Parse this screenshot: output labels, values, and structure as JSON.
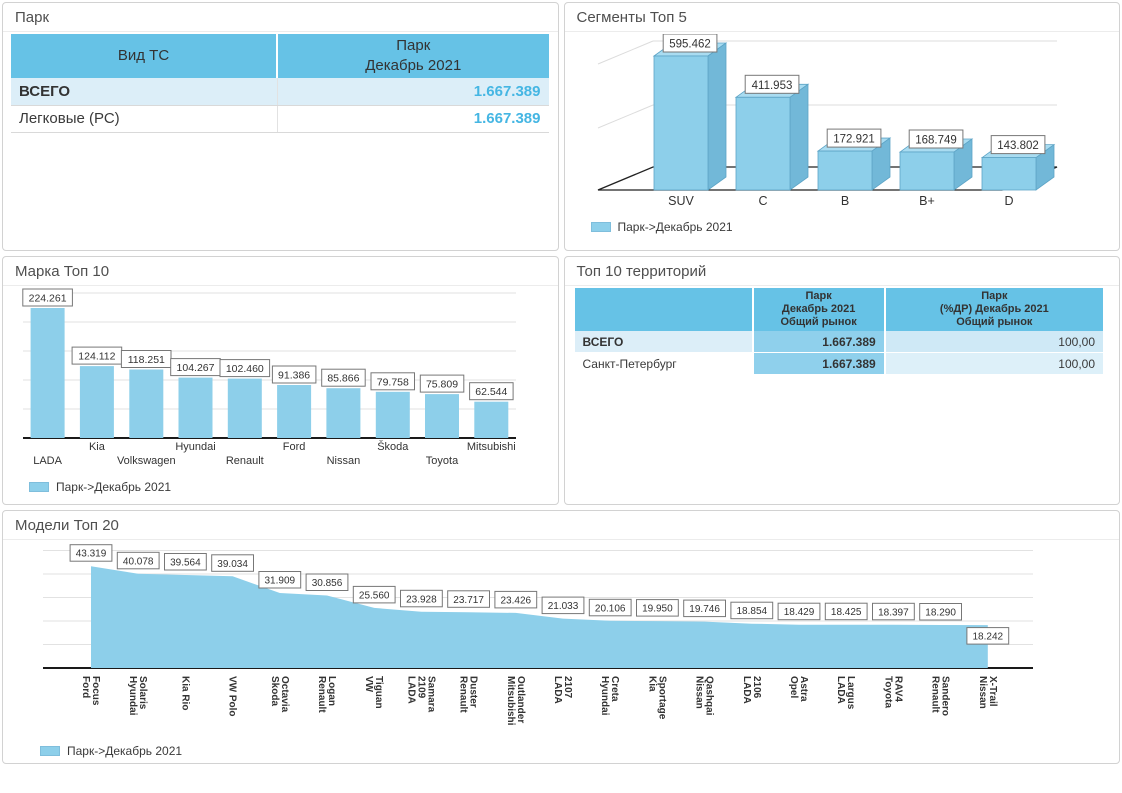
{
  "panels": {
    "park": {
      "title": "Парк",
      "table": {
        "col1_header": "Вид ТС",
        "col2_header": [
          "Парк",
          "Декабрь 2021"
        ],
        "rows": [
          {
            "label": "ВСЕГО",
            "value": "1.667.389"
          },
          {
            "label": "Легковые (РС)",
            "value": "1.667.389"
          }
        ]
      }
    },
    "segments": {
      "title": "Сегменты Топ 5",
      "legend": "Парк->Декабрь 2021"
    },
    "brands": {
      "title": "Марка Топ 10",
      "legend": "Парк->Декабрь 2021"
    },
    "territories": {
      "title": "Топ 10 территорий",
      "table": {
        "col1_header": "",
        "col2_header": [
          "Парк",
          "Декабрь 2021",
          "Общий рынок"
        ],
        "col3_header": [
          "Парк",
          "(%ДР) Декабрь 2021",
          "Общий рынок"
        ],
        "rows": [
          {
            "label": "ВСЕГО",
            "park": "1.667.389",
            "share": "100,00"
          },
          {
            "label": "Санкт-Петербург",
            "park": "1.667.389",
            "share": "100,00"
          }
        ]
      }
    },
    "models": {
      "title": "Модели Топ 20",
      "legend": "Парк->Декабрь 2021"
    }
  },
  "colors": {
    "header_blue": "#66C2E6",
    "row_highlight": "#DCEEF8",
    "databar_cell": "#8FD0EC",
    "value_text_blue": "#45B6E3",
    "bar_fill": "#8DCFEA",
    "bar_top_face": "#A9DCF1",
    "bar_side_face": "#72B8D8",
    "bar_outline": "#5DA4C6",
    "grid_line": "#dcdcdc",
    "axis_line": "#1a1a1a"
  },
  "chart_data": [
    {
      "id": "segments",
      "type": "bar",
      "variant": "3d",
      "title": "Сегменты Топ 5",
      "categories": [
        "SUV",
        "C",
        "B",
        "B+",
        "D"
      ],
      "series": [
        {
          "name": "Парк->Декабрь 2021",
          "values": [
            595462,
            411953,
            172921,
            168749,
            143802
          ]
        }
      ],
      "value_labels": [
        "595.462",
        "411.953",
        "172.921",
        "168.749",
        "143.802"
      ],
      "ylim": [
        0,
        600000
      ],
      "grid": true,
      "legend_position": "bottom-left"
    },
    {
      "id": "brands",
      "type": "bar",
      "title": "Марка Топ 10",
      "categories": [
        "LADA",
        "Kia",
        "Volkswagen",
        "Hyundai",
        "Renault",
        "Ford",
        "Nissan",
        "Škoda",
        "Toyota",
        "Mitsubishi"
      ],
      "series": [
        {
          "name": "Парк->Декабрь 2021",
          "values": [
            224261,
            124112,
            118251,
            104267,
            102460,
            91386,
            85866,
            79758,
            75809,
            62544
          ]
        }
      ],
      "value_labels": [
        "224.261",
        "124.112",
        "118.251",
        "104.267",
        "102.460",
        "91.386",
        "85.866",
        "79.758",
        "75.809",
        "62.544"
      ],
      "ylim": [
        0,
        250000
      ],
      "grid_step": 50000,
      "grid": true,
      "legend_position": "bottom-left"
    },
    {
      "id": "models",
      "type": "area",
      "title": "Модели Топ 20",
      "categories": [
        [
          "Ford",
          "Focus"
        ],
        [
          "Hyundai",
          "Solaris"
        ],
        [
          "Kia Rio"
        ],
        [
          "VW Polo"
        ],
        [
          "Skoda",
          "Octavia"
        ],
        [
          "Renault",
          "Logan"
        ],
        [
          "VW",
          "Tiguan"
        ],
        [
          "LADA",
          "2109",
          "Samara"
        ],
        [
          "Renault",
          "Duster"
        ],
        [
          "Mitsubishi",
          "Outlander"
        ],
        [
          "LADA",
          "2107"
        ],
        [
          "Hyundai",
          "Creta"
        ],
        [
          "Kia",
          "Sportage"
        ],
        [
          "Nissan",
          "Qashqai"
        ],
        [
          "LADA",
          "2106"
        ],
        [
          "Opel",
          "Astra"
        ],
        [
          "LADA",
          "Largus"
        ],
        [
          "Toyota",
          "RAV4"
        ],
        [
          "Renault",
          "Sandero"
        ],
        [
          "Nissan",
          "X-Trail"
        ]
      ],
      "series": [
        {
          "name": "Парк->Декабрь 2021",
          "values": [
            43319,
            40078,
            39564,
            39034,
            31909,
            30856,
            25560,
            23928,
            23717,
            23426,
            21033,
            20106,
            19950,
            19746,
            18854,
            18429,
            18425,
            18397,
            18290,
            18242
          ]
        }
      ],
      "value_labels": [
        "43.319",
        "40.078",
        "39.564",
        "39.034",
        "31.909",
        "30.856",
        "25.560",
        "23.928",
        "23.717",
        "23.426",
        "21.033",
        "20.106",
        "19.950",
        "19.746",
        "18.854",
        "18.429",
        "18.425",
        "18.397",
        "18.290",
        "18.242"
      ],
      "ylim": [
        0,
        53500
      ],
      "grid_step": 10000,
      "grid": true,
      "legend_position": "bottom-left"
    }
  ]
}
